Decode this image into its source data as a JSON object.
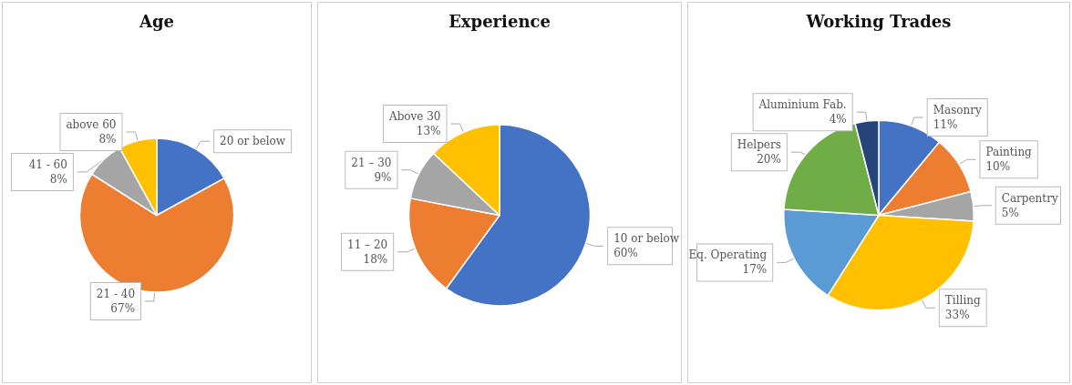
{
  "chart_data": [
    {
      "type": "pie",
      "title": "Age",
      "categories": [
        "20 or below",
        "21 - 40",
        "41 - 60",
        "above 60"
      ],
      "values": [
        17,
        67,
        8,
        8
      ],
      "colors": [
        "#4472c4",
        "#ed7d31",
        "#a5a5a5",
        "#ffc000"
      ],
      "value_labels": [
        null,
        "67%",
        "8%",
        "8%"
      ],
      "legend": false
    },
    {
      "type": "pie",
      "title": "Experience",
      "categories": [
        "10 or below",
        "11 – 20",
        "21 – 30",
        "Above 30"
      ],
      "values": [
        60,
        18,
        9,
        13
      ],
      "colors": [
        "#4472c4",
        "#ed7d31",
        "#a5a5a5",
        "#ffc000"
      ],
      "value_labels": [
        "60%",
        "18%",
        "9%",
        "13%"
      ],
      "legend": false
    },
    {
      "type": "pie",
      "title": "Working Trades",
      "categories": [
        "Masonry",
        "Painting",
        "Carpentry",
        "Tilling",
        "Eq. Operating",
        "Helpers",
        "Aluminium Fab."
      ],
      "values": [
        11,
        10,
        5,
        33,
        17,
        20,
        4
      ],
      "colors": [
        "#4472c4",
        "#ed7d31",
        "#a5a5a5",
        "#ffc000",
        "#5b9bd5",
        "#70ad47",
        "#264478"
      ],
      "value_labels": [
        "11%",
        "10%",
        "5%",
        "33%",
        "17%",
        "20%",
        "4%"
      ],
      "legend": false
    }
  ]
}
